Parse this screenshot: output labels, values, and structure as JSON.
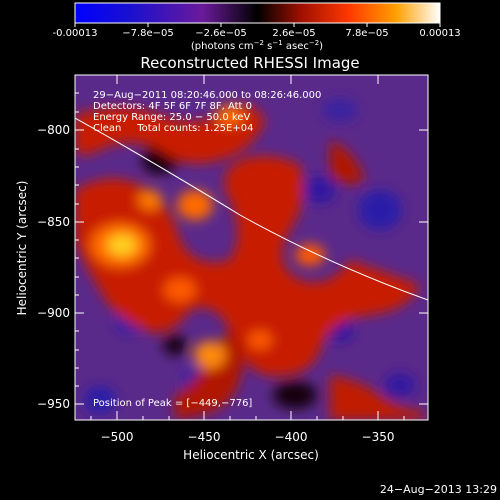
{
  "colorbar": {
    "tick_labels": [
      "-0.00013",
      "−7.8e−05",
      "−2.6e−05",
      "2.6e−05",
      "7.8e−05",
      "0.00013"
    ],
    "units_main": "(photons cm",
    "units_exp1": "−2",
    "units_mid": " s",
    "units_exp2": "−1",
    "units_tail": " asec",
    "units_exp3": "−2",
    "units_close": ")"
  },
  "plot": {
    "title": "Reconstructed RHESSI Image",
    "xlabel": "Heliocentric X (arcsec)",
    "ylabel": "Heliocentric Y (arcsec)",
    "xticks": [
      "−500",
      "−450",
      "−400",
      "−350"
    ],
    "yticks": [
      "−800",
      "−850",
      "−900",
      "−950"
    ],
    "annotations": {
      "line1": "29−Aug−2011 08:20:46.000 to 08:26:46.000",
      "line2": "Detectors: 4F 5F 6F 7F 8F, Att 0",
      "line3": "Energy Range: 25.0 − 50.0 keV",
      "line4": "Clean     Total counts: 1.25E+04"
    },
    "peak_label": "Position of Peak = [−449,−776]"
  },
  "footer_timestamp": "24−Aug−2013 13:29"
}
